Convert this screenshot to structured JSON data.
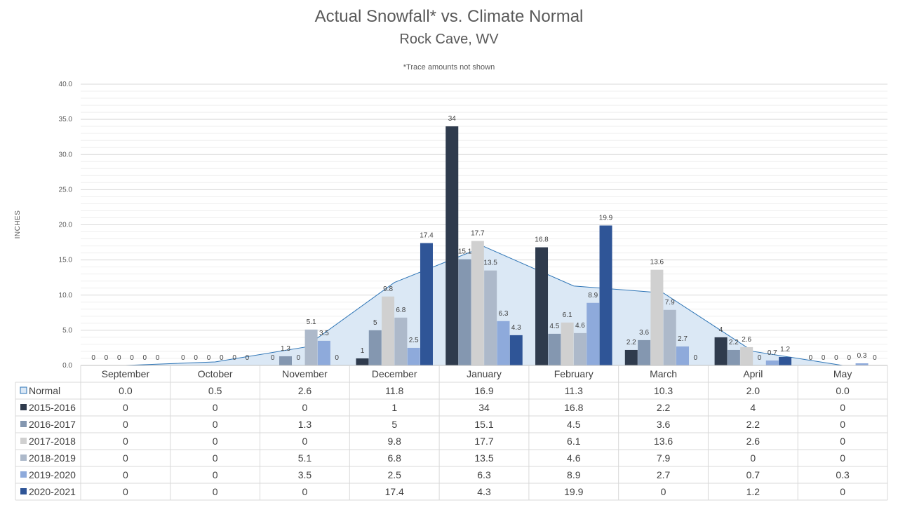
{
  "chart_data": {
    "type": "bar",
    "title": "Actual Snowfall* vs. Climate Normal",
    "subtitle": "Rock Cave, WV",
    "note": "*Trace amounts not shown",
    "ylabel": "INCHES",
    "ylim": [
      0,
      40
    ],
    "yticks": [
      "0.0",
      "5.0",
      "10.0",
      "15.0",
      "20.0",
      "25.0",
      "30.0",
      "35.0",
      "40.0"
    ],
    "grid": true,
    "legend": "data table",
    "categories": [
      "September",
      "October",
      "November",
      "December",
      "January",
      "February",
      "March",
      "April",
      "May"
    ],
    "normal": {
      "name": "Normal",
      "type": "area",
      "color": "#dbe8f5",
      "line_color": "#2e75b6",
      "values": [
        0.0,
        0.5,
        2.6,
        11.8,
        16.9,
        11.3,
        10.3,
        2.0,
        0.0
      ],
      "display": [
        "0.0",
        "0.5",
        "2.6",
        "11.8",
        "16.9",
        "11.3",
        "10.3",
        "2.0",
        "0.0"
      ]
    },
    "series": [
      {
        "name": "2015-2016",
        "color": "#2f3b4d",
        "values": [
          0,
          0,
          0,
          1,
          34,
          16.8,
          2.2,
          4,
          0
        ]
      },
      {
        "name": "2016-2017",
        "color": "#8497b0",
        "values": [
          0,
          0,
          1.3,
          5,
          15.1,
          4.5,
          3.6,
          2.2,
          0
        ]
      },
      {
        "name": "2017-2018",
        "color": "#d0d0d0",
        "values": [
          0,
          0,
          0,
          9.8,
          17.7,
          6.1,
          13.6,
          2.6,
          0
        ]
      },
      {
        "name": "2018-2019",
        "color": "#adb9ca",
        "values": [
          0,
          0,
          5.1,
          6.8,
          13.5,
          4.6,
          7.9,
          0,
          0
        ]
      },
      {
        "name": "2019-2020",
        "color": "#8eaadb",
        "values": [
          0,
          0,
          3.5,
          2.5,
          6.3,
          8.9,
          2.7,
          0.7,
          0.3
        ]
      },
      {
        "name": "2020-2021",
        "color": "#2f5597",
        "values": [
          0,
          0,
          0,
          17.4,
          4.3,
          19.9,
          0,
          1.2,
          0
        ]
      }
    ]
  }
}
